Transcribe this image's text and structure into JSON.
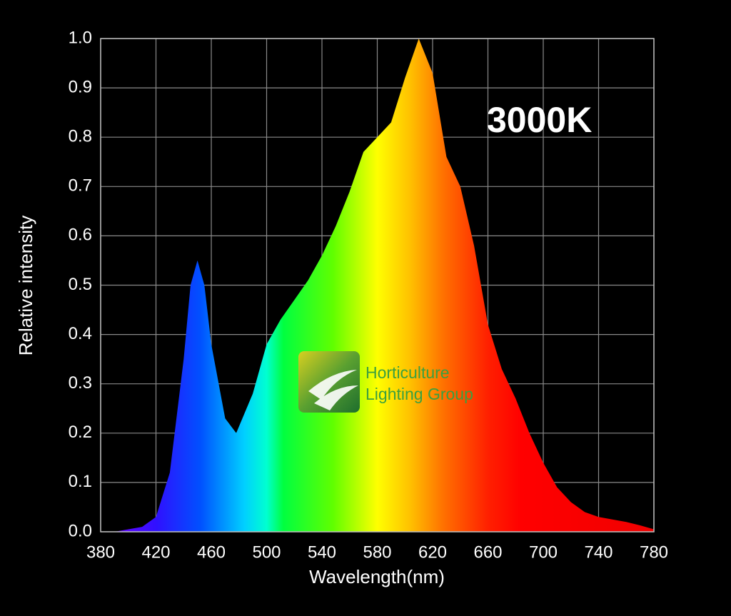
{
  "chart_data": {
    "type": "area",
    "annotation": "3000K",
    "x_label": "Wavelength(nm)",
    "y_label": "Relative intensity",
    "logo": [
      "Horticulture",
      "Lighting Group"
    ],
    "x": [
      380,
      390,
      400,
      410,
      420,
      430,
      440,
      445,
      450,
      455,
      460,
      470,
      478,
      490,
      500,
      510,
      520,
      530,
      540,
      550,
      560,
      570,
      580,
      590,
      600,
      610,
      620,
      630,
      640,
      650,
      660,
      670,
      680,
      690,
      700,
      710,
      720,
      730,
      740,
      750,
      760,
      770,
      780
    ],
    "values": [
      0.0,
      0.0,
      0.005,
      0.01,
      0.03,
      0.12,
      0.35,
      0.5,
      0.55,
      0.5,
      0.38,
      0.23,
      0.2,
      0.28,
      0.38,
      0.43,
      0.47,
      0.51,
      0.56,
      0.62,
      0.69,
      0.77,
      0.8,
      0.83,
      0.92,
      1.0,
      0.93,
      0.76,
      0.7,
      0.58,
      0.42,
      0.33,
      0.27,
      0.2,
      0.14,
      0.09,
      0.06,
      0.04,
      0.03,
      0.025,
      0.02,
      0.013,
      0.005
    ],
    "xlim": [
      380,
      780
    ],
    "xticks": [
      380,
      420,
      460,
      500,
      540,
      580,
      620,
      660,
      700,
      740,
      780
    ],
    "ylim": [
      0,
      1
    ],
    "yticks": [
      {
        "value": 0,
        "label": "0.0"
      },
      0.1,
      0.2,
      0.3,
      0.4,
      0.5,
      0.6,
      0.7,
      0.8,
      0.9,
      {
        "value": 1,
        "label": "1.0"
      }
    ],
    "grid": true
  }
}
